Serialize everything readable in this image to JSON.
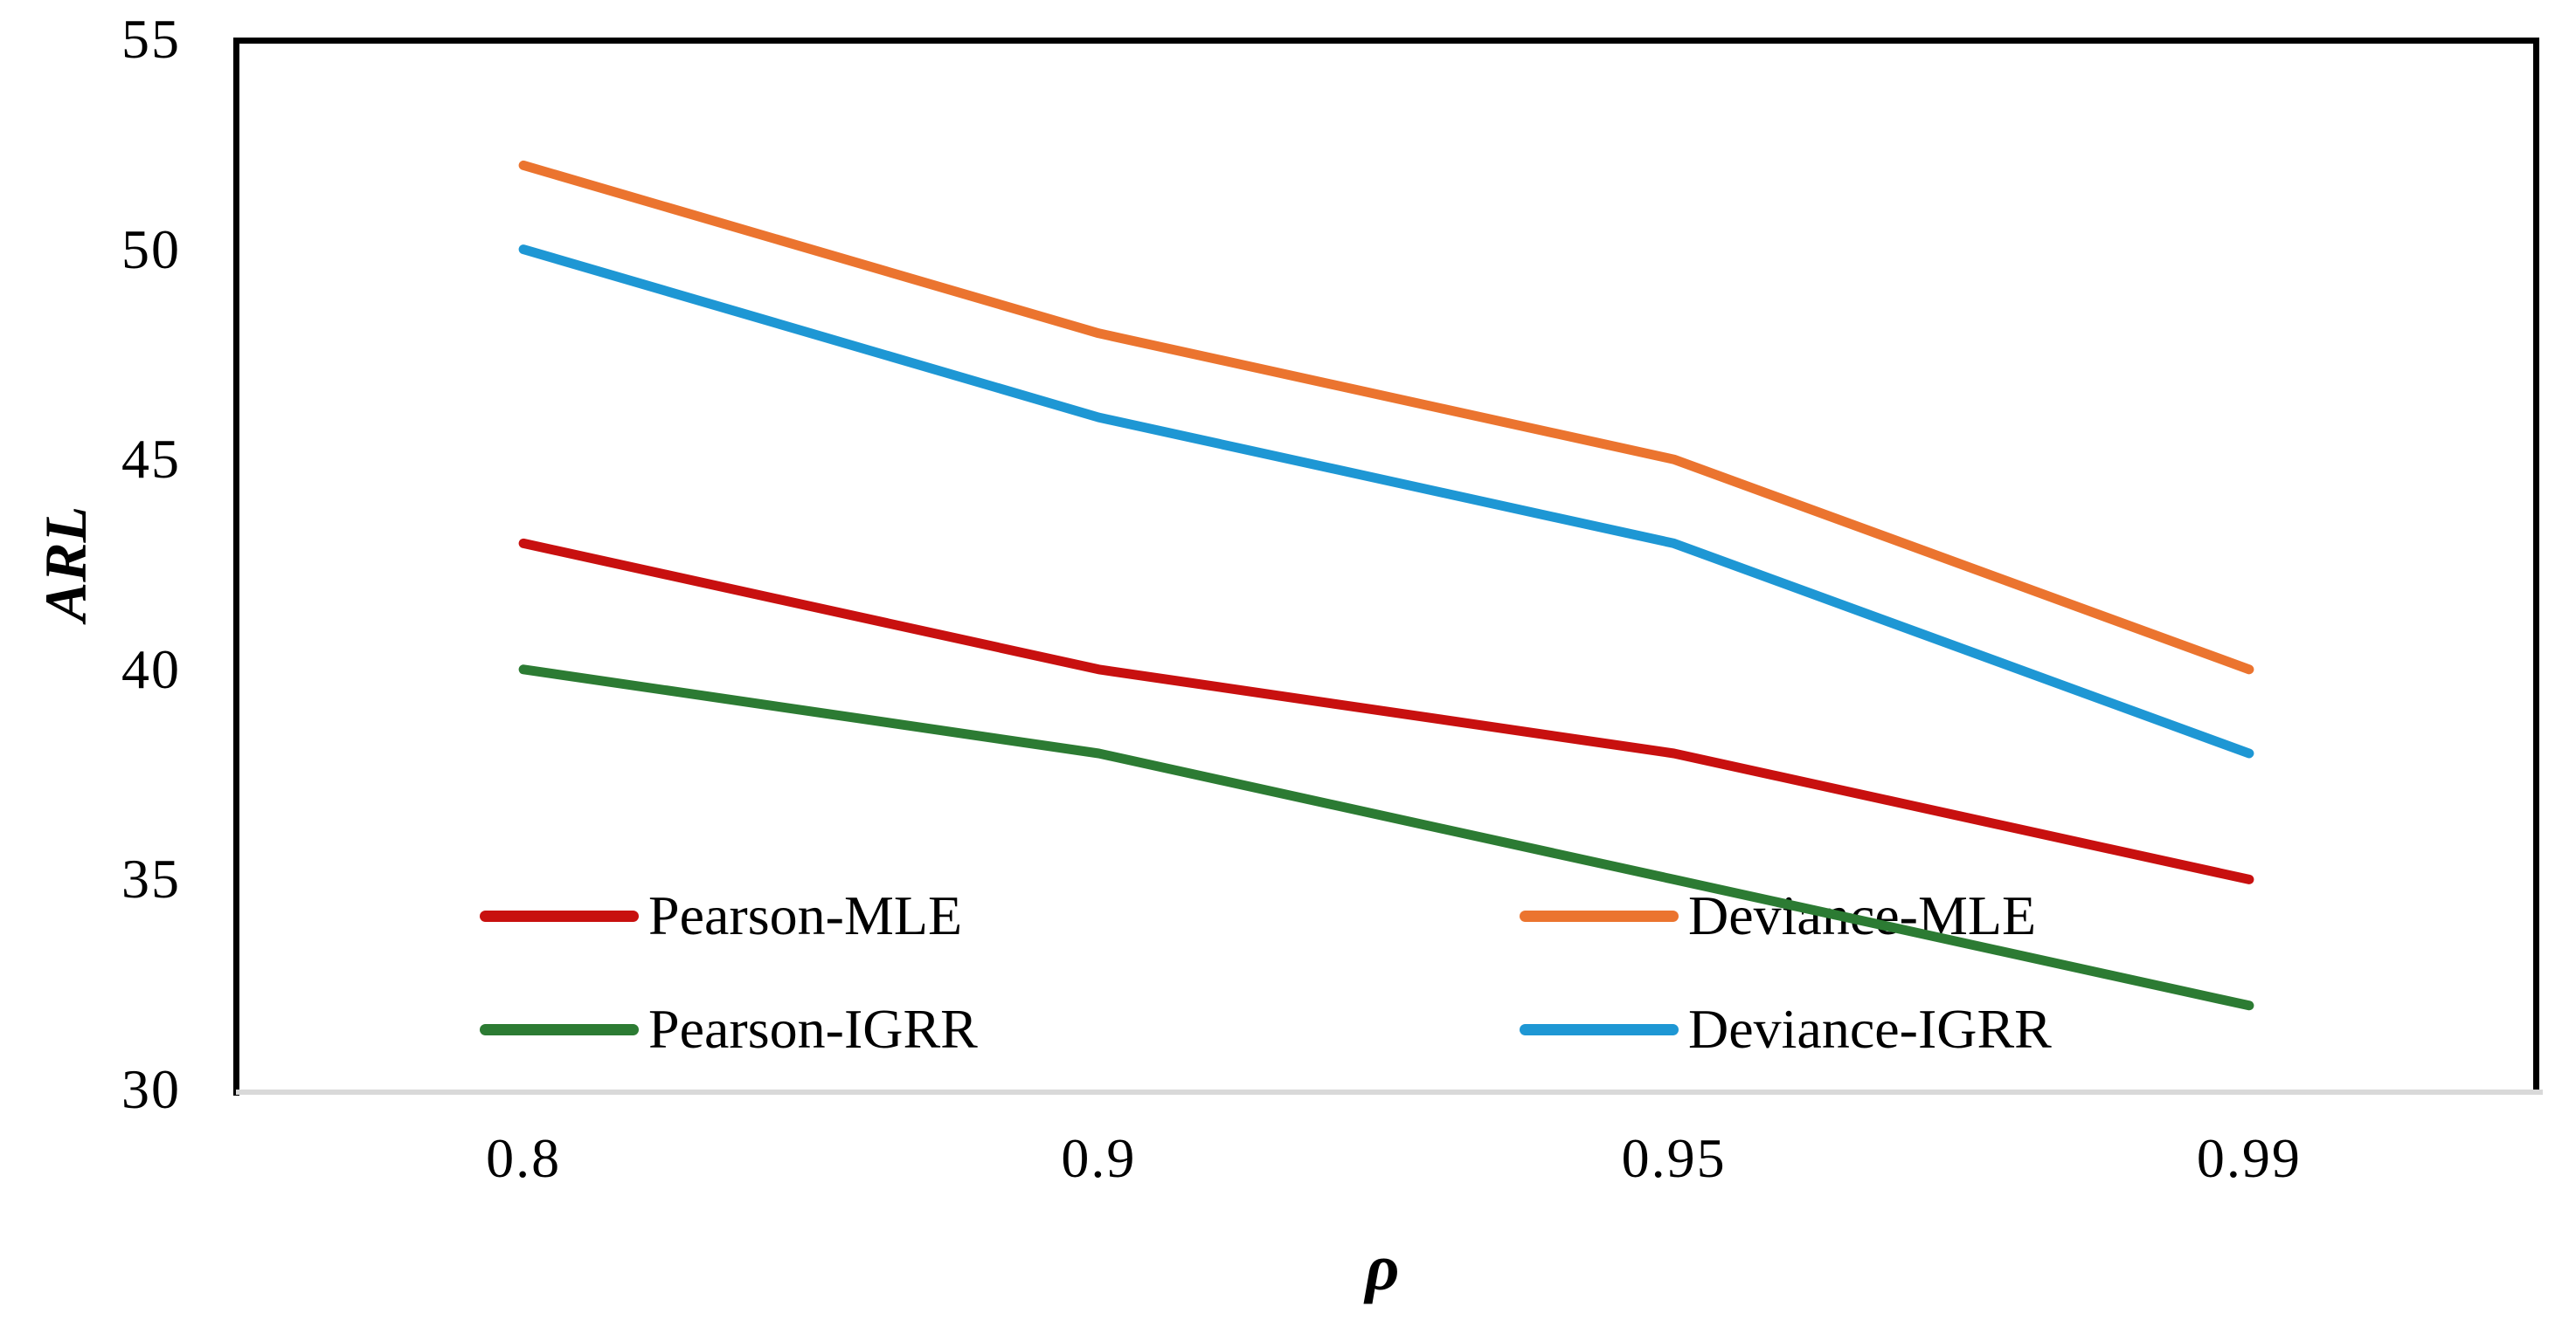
{
  "chart_data": {
    "type": "line",
    "title": "",
    "xlabel": "ρ",
    "ylabel": "ARL",
    "categories": [
      "0.8",
      "0.9",
      "0.95",
      "0.99"
    ],
    "series": [
      {
        "name": "Pearson-MLE",
        "color": "#C8100F",
        "values": [
          43,
          40,
          38,
          35
        ]
      },
      {
        "name": "Deviance-MLE",
        "color": "#EB742F",
        "values": [
          52,
          48,
          45,
          40
        ]
      },
      {
        "name": "Pearson-IGRR",
        "color": "#2C7B33",
        "values": [
          40,
          38,
          35,
          32
        ]
      },
      {
        "name": "Deviance-IGRR",
        "color": "#1E97D4",
        "values": [
          50,
          46,
          43,
          38
        ]
      }
    ],
    "ylim": [
      30,
      55
    ],
    "y_ticks": [
      "55",
      "50",
      "45",
      "40",
      "35",
      "30"
    ],
    "y_tick_values": [
      55,
      50,
      45,
      40,
      35,
      30
    ],
    "x_ticks": [
      "0.8",
      "0.9",
      "0.95",
      "0.99"
    ],
    "grid": false,
    "legend_position": "inside-bottom, 2 columns, 2 rows",
    "axis_frame_color": "#000000",
    "baseline_color": "#D9D9D9",
    "background_color": "#FFFFFF"
  }
}
